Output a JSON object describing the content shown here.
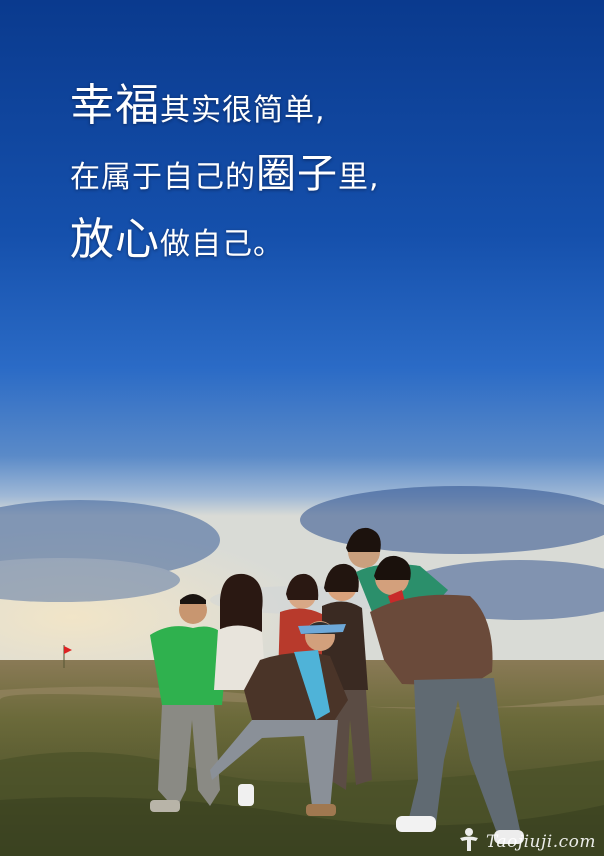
{
  "slogan": {
    "line1": {
      "big": "幸福",
      "small": "其实很简单,"
    },
    "line2": {
      "a": "在属于自己的",
      "big": "圈子",
      "b": "里,"
    },
    "line3": {
      "big": "放心",
      "small": "做自己。"
    }
  },
  "watermark": {
    "text": "Taojiuji.com"
  },
  "colors": {
    "sky_top": "#0a3a8e",
    "sky_mid": "#2b6bc6",
    "horizon": "#9fb8d6",
    "grass": "#6b6a3a"
  }
}
